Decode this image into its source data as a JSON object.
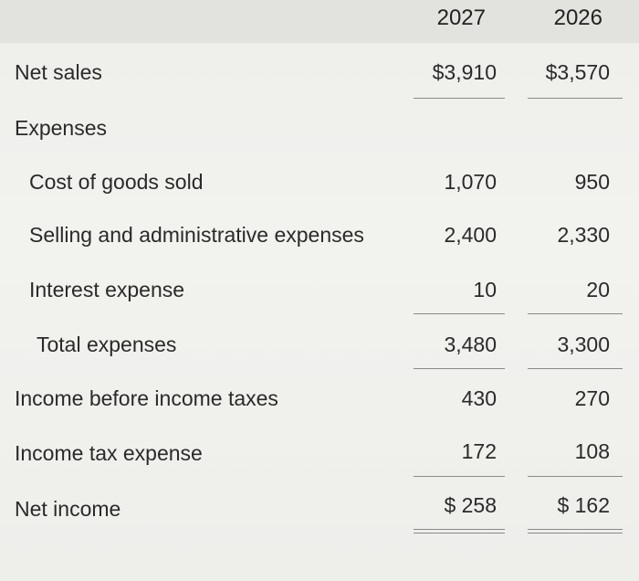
{
  "header": {
    "col_2027": "2027",
    "col_2026": "2026"
  },
  "rows": {
    "net_sales": {
      "label": "Net sales",
      "v2027": "$3,910",
      "v2026": "$3,570"
    },
    "expenses": {
      "label": "Expenses"
    },
    "cogs": {
      "label": "Cost of goods sold",
      "v2027": "1,070",
      "v2026": "950"
    },
    "sga": {
      "label": "Selling and administrative expenses",
      "v2027": "2,400",
      "v2026": "2,330"
    },
    "interest": {
      "label": "Interest expense",
      "v2027": "10",
      "v2026": "20"
    },
    "total_expenses": {
      "label": "Total expenses",
      "v2027": "3,480",
      "v2026": "3,300"
    },
    "income_before_tax": {
      "label": "Income before income taxes",
      "v2027": "430",
      "v2026": "270"
    },
    "income_tax": {
      "label": "Income tax expense",
      "v2027": "172",
      "v2026": "108"
    },
    "net_income": {
      "label": "Net income",
      "v2027": "$ 258",
      "v2026": "$ 162"
    }
  }
}
